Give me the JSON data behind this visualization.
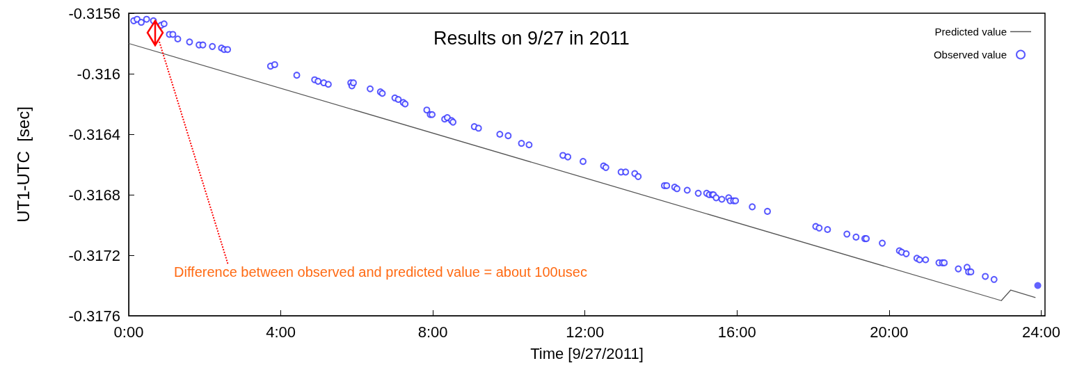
{
  "chart_data": {
    "type": "scatter",
    "title": "Results on 9/27 in 2011",
    "xlabel": "Time [9/27/2011]",
    "ylabel": "UT1-UTC  [sec]",
    "annotations": [
      "Difference between observed and predicted value = about 100usec"
    ],
    "xlim": [
      0,
      24.1
    ],
    "xticks": [
      {
        "value": 0,
        "label": "0:00"
      },
      {
        "value": 4,
        "label": "4:00"
      },
      {
        "value": 8,
        "label": "8:00"
      },
      {
        "value": 12,
        "label": "12:00"
      },
      {
        "value": 16,
        "label": "16:00"
      },
      {
        "value": 20,
        "label": "20:00"
      },
      {
        "value": 24,
        "label": "24:00"
      }
    ],
    "ylim": [
      -0.3176,
      -0.3156
    ],
    "yticks": [
      -0.3176,
      -0.3172,
      -0.3168,
      -0.3164,
      -0.316,
      -0.3156
    ],
    "grid": false,
    "legend": "top right",
    "series": [
      {
        "name": "Predicted value",
        "type": "line",
        "color": "#555555",
        "line_style": "solid",
        "x": [
          0,
          22.95,
          23.2,
          23.85
        ],
        "values": [
          -0.3158,
          -0.3175,
          -0.31743,
          -0.31748
        ]
      },
      {
        "name": "Observed value",
        "marker": "circle",
        "color": "#3b3bff",
        "x": [
          0.13,
          0.22,
          0.33,
          0.47,
          0.65,
          0.85,
          0.93,
          1.07,
          1.16,
          1.29,
          1.6,
          1.85,
          1.95,
          2.2,
          2.44,
          2.51,
          2.6,
          3.73,
          3.84,
          4.42,
          4.89,
          4.98,
          5.13,
          5.25,
          5.84,
          5.87,
          5.91,
          6.35,
          6.62,
          6.67,
          7,
          7.09,
          7.22,
          7.27,
          7.84,
          7.93,
          7.98,
          8.31,
          8.38,
          8.49,
          8.53,
          9.09,
          9.2,
          9.76,
          9.98,
          10.33,
          10.53,
          11.42,
          11.55,
          11.95,
          12.49,
          12.55,
          12.95,
          13.07,
          13.31,
          13.4,
          14.09,
          14.15,
          14.36,
          14.42,
          14.69,
          14.98,
          15.2,
          15.27,
          15.35,
          15.38,
          15.45,
          15.6,
          15.78,
          15.82,
          15.91,
          15.96,
          16.4,
          16.8,
          18.07,
          18.16,
          18.38,
          18.89,
          19.13,
          19.36,
          19.4,
          19.82,
          20.27,
          20.33,
          20.45,
          20.73,
          20.8,
          20.96,
          21.31,
          21.4,
          21.45,
          21.82,
          22.05,
          22.09,
          22.15,
          22.53,
          22.76
        ],
        "values": [
          -0.31565,
          -0.31564,
          -0.31566,
          -0.31564,
          -0.31565,
          -0.31568,
          -0.31567,
          -0.31574,
          -0.31574,
          -0.31577,
          -0.31579,
          -0.31581,
          -0.31581,
          -0.31582,
          -0.31583,
          -0.31584,
          -0.31584,
          -0.31595,
          -0.31594,
          -0.31601,
          -0.31604,
          -0.31605,
          -0.31606,
          -0.31607,
          -0.31606,
          -0.31608,
          -0.31606,
          -0.3161,
          -0.31612,
          -0.31613,
          -0.31616,
          -0.31617,
          -0.31619,
          -0.3162,
          -0.31624,
          -0.31627,
          -0.31627,
          -0.3163,
          -0.31629,
          -0.31631,
          -0.31632,
          -0.31635,
          -0.31636,
          -0.3164,
          -0.31641,
          -0.31646,
          -0.31647,
          -0.31654,
          -0.31655,
          -0.31658,
          -0.31661,
          -0.31662,
          -0.31665,
          -0.31665,
          -0.31666,
          -0.31668,
          -0.31674,
          -0.31674,
          -0.31675,
          -0.31676,
          -0.31677,
          -0.31679,
          -0.31679,
          -0.3168,
          -0.3168,
          -0.3168,
          -0.31682,
          -0.31683,
          -0.31682,
          -0.31684,
          -0.31684,
          -0.31684,
          -0.31688,
          -0.31691,
          -0.31701,
          -0.31702,
          -0.31703,
          -0.31706,
          -0.31708,
          -0.31709,
          -0.31709,
          -0.31712,
          -0.31717,
          -0.31718,
          -0.31719,
          -0.31722,
          -0.31723,
          -0.31723,
          -0.31725,
          -0.31725,
          -0.31725,
          -0.31729,
          -0.31728,
          -0.31731,
          -0.31731,
          -0.31734,
          -0.31736
        ]
      },
      {
        "marker": "circle",
        "color": "#3b3bff",
        "x": [
          23.91
        ],
        "values": [
          -0.3174
        ]
      }
    ]
  }
}
